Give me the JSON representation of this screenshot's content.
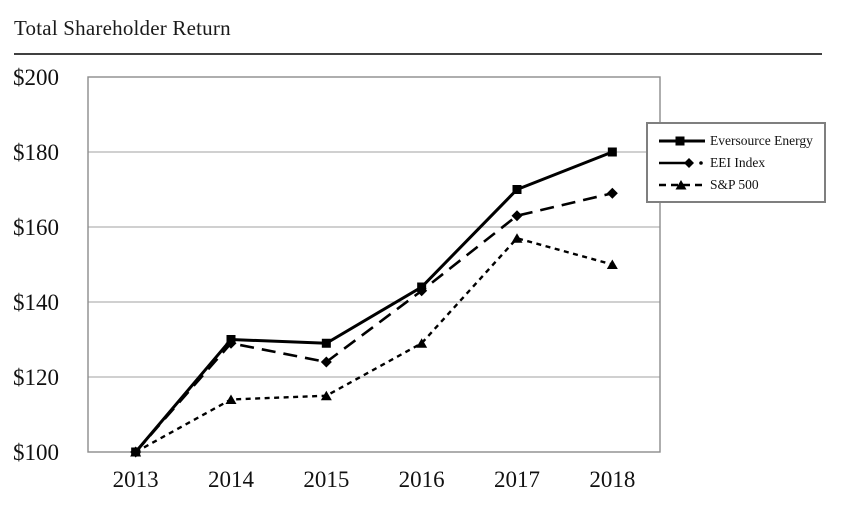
{
  "chart_data": {
    "type": "line",
    "title": "Total Shareholder Return",
    "categories": [
      "2013",
      "2014",
      "2015",
      "2016",
      "2017",
      "2018"
    ],
    "xlabel": "",
    "ylabel": "",
    "ylim": [
      100,
      200
    ],
    "y_ticks": [
      100,
      120,
      140,
      160,
      180,
      200
    ],
    "y_tick_labels": [
      "$100",
      "$120",
      "$140",
      "$160",
      "$180",
      "$200"
    ],
    "grid": "horizontal-gridlines",
    "legend_position": "upper-right-inside",
    "series": [
      {
        "name": "Eversource Energy",
        "marker": "square",
        "line_style": "solid",
        "values": [
          100,
          130,
          129,
          144,
          170,
          180
        ]
      },
      {
        "name": "EEI Index",
        "marker": "diamond",
        "line_style": "long-dash",
        "values": [
          100,
          129,
          124,
          143,
          163,
          169
        ]
      },
      {
        "name": "S&P 500",
        "marker": "triangle",
        "line_style": "short-dash",
        "values": [
          100,
          114,
          115,
          129,
          157,
          150
        ]
      }
    ],
    "colors": {
      "series": "#000000",
      "grid_line": "#b3b3b3",
      "plot_border": "#8c8c8c",
      "legend_border": "#7f7f7f",
      "title_rule": "#404040",
      "text": "#111111",
      "background": "#ffffff"
    }
  }
}
